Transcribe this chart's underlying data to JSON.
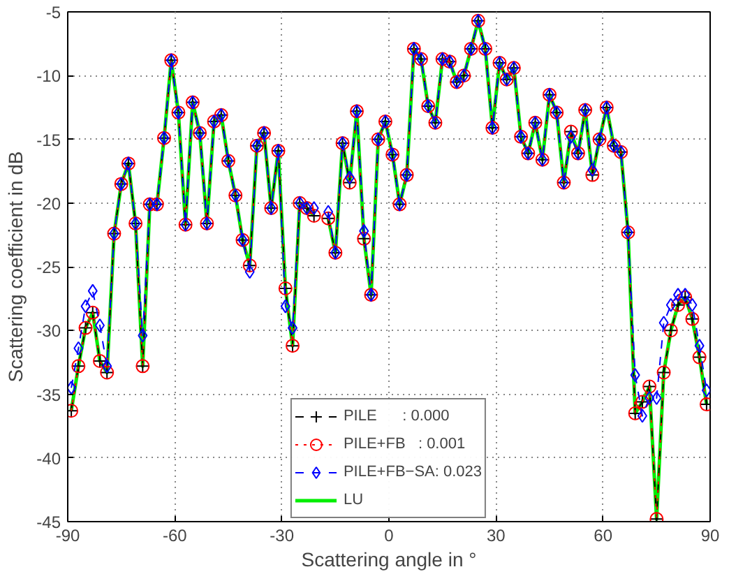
{
  "chart_data": {
    "type": "line",
    "xlabel": "Scattering angle in °",
    "ylabel": "Scattering coefficient in dB",
    "x": [
      -89,
      -87,
      -85,
      -83,
      -81,
      -79,
      -77,
      -75,
      -73,
      -71,
      -69,
      -67,
      -65,
      -63,
      -61,
      -59,
      -57,
      -55,
      -53,
      -51,
      -49,
      -47,
      -45,
      -43,
      -41,
      -39,
      -37,
      -35,
      -33,
      -31,
      -29,
      -27,
      -25,
      -23,
      -21,
      -19,
      -17,
      -15,
      -13,
      -11,
      -9,
      -7,
      -5,
      -3,
      -1,
      1,
      3,
      5,
      7,
      9,
      11,
      13,
      15,
      17,
      19,
      21,
      23,
      25,
      27,
      29,
      31,
      33,
      35,
      37,
      39,
      41,
      43,
      45,
      47,
      49,
      51,
      53,
      55,
      57,
      59,
      61,
      63,
      65,
      67,
      69,
      71,
      73,
      75,
      77,
      79,
      81,
      83,
      85,
      87,
      89
    ],
    "series": [
      {
        "name": "PILE      : 0.000",
        "color": "#000000",
        "marker": "cross",
        "line_style": "dashed",
        "values": [
          -36.3,
          -32.8,
          -29.8,
          -28.6,
          -32.4,
          -33.3,
          -22.4,
          -18.5,
          -16.9,
          -21.6,
          -32.8,
          -20.1,
          -20.1,
          -14.9,
          -8.8,
          -12.9,
          -21.7,
          -12.1,
          -14.5,
          -21.6,
          -13.6,
          -13.1,
          -16.7,
          -19.4,
          -22.9,
          -24.9,
          -15.5,
          -14.5,
          -20.4,
          -15.9,
          -26.7,
          -31.2,
          -20.0,
          -20.4,
          -21.0,
          null,
          -21.2,
          -23.9,
          -15.3,
          -18.4,
          -12.8,
          -22.8,
          -27.2,
          -15.0,
          -13.6,
          -16.2,
          -20.1,
          -17.8,
          -7.9,
          -8.7,
          -12.4,
          -13.7,
          -8.7,
          -8.9,
          -10.5,
          -10.0,
          -7.9,
          -5.7,
          -7.9,
          -14.1,
          -9.0,
          -10.3,
          -9.4,
          -14.8,
          -16.1,
          -13.7,
          -16.6,
          -11.5,
          -12.9,
          -18.4,
          -14.4,
          -16.1,
          -12.7,
          -17.8,
          -15.0,
          -12.5,
          -15.5,
          -16.0,
          -22.3,
          -36.5,
          -35.6,
          -34.4,
          -44.8,
          -33.3,
          -30.0,
          -28.0,
          -27.4,
          -29.1,
          -32.1,
          -35.8
        ]
      },
      {
        "name": "PILE+FB   : 0.001",
        "color": "#ff0000",
        "marker": "circle",
        "line_style": "dotted",
        "values": [
          -36.3,
          -32.8,
          -29.8,
          -28.6,
          -32.4,
          -33.3,
          -22.4,
          -18.5,
          -16.9,
          -21.6,
          -32.8,
          -20.1,
          -20.1,
          -14.9,
          -8.8,
          -12.9,
          -21.7,
          -12.1,
          -14.5,
          -21.6,
          -13.6,
          -13.1,
          -16.7,
          -19.4,
          -22.9,
          -24.9,
          -15.5,
          -14.5,
          -20.4,
          -15.9,
          -26.7,
          -31.2,
          -20.0,
          -20.4,
          -21.0,
          null,
          -21.2,
          -23.9,
          -15.3,
          -18.4,
          -12.8,
          -22.8,
          -27.2,
          -15.0,
          -13.6,
          -16.2,
          -20.1,
          -17.8,
          -7.9,
          -8.7,
          -12.4,
          -13.7,
          -8.7,
          -8.9,
          -10.5,
          -10.0,
          -7.9,
          -5.7,
          -7.9,
          -14.1,
          -9.0,
          -10.3,
          -9.4,
          -14.8,
          -16.1,
          -13.7,
          -16.6,
          -11.5,
          -12.9,
          -18.4,
          -14.4,
          -16.1,
          -12.7,
          -17.8,
          -15.0,
          -12.5,
          -15.5,
          -16.0,
          -22.3,
          -36.5,
          -35.6,
          -34.4,
          -44.8,
          -33.3,
          -30.0,
          -28.0,
          -27.4,
          -29.1,
          -32.1,
          -35.8
        ]
      },
      {
        "name": "PILE+FB−SA: 0.023",
        "color": "#0000ff",
        "marker": "diamond",
        "line_style": "dashed",
        "values": [
          -34.5,
          -31.4,
          -28.1,
          -26.9,
          -29.6,
          -32.8,
          -22.4,
          -18.5,
          -16.9,
          -21.6,
          -30.4,
          -20.1,
          -20.1,
          -14.9,
          -8.8,
          -12.9,
          -21.7,
          -12.1,
          -14.5,
          -21.6,
          -13.6,
          -13.1,
          -16.7,
          -19.4,
          -22.9,
          -25.4,
          -15.5,
          -14.5,
          -20.4,
          -15.9,
          -28.1,
          -29.8,
          -20.0,
          -20.4,
          -20.4,
          null,
          -20.7,
          -23.9,
          -15.3,
          -18.0,
          -12.8,
          -22.2,
          -27.2,
          -15.0,
          -13.6,
          -16.2,
          -20.1,
          -17.8,
          -7.9,
          -8.7,
          -12.4,
          -13.7,
          -8.7,
          -8.9,
          -10.5,
          -10.0,
          -7.9,
          -5.7,
          -7.9,
          -14.1,
          -9.0,
          -10.3,
          -9.4,
          -14.8,
          -16.1,
          -13.7,
          -16.6,
          -11.5,
          -12.9,
          -18.4,
          -14.8,
          -16.1,
          -12.7,
          -17.4,
          -15.0,
          -12.5,
          -15.5,
          -16.0,
          -22.3,
          -33.5,
          -36.7,
          -35.3,
          -35.3,
          -29.4,
          -28.0,
          -27.2,
          -27.2,
          -28.0,
          -31.2,
          -34.7
        ]
      },
      {
        "name": "LU",
        "color": "#00ee00",
        "line_style": "solid",
        "values": [
          -36.3,
          -32.8,
          -29.8,
          -28.6,
          -32.4,
          -33.3,
          -22.4,
          -18.5,
          -16.9,
          -21.6,
          -32.8,
          -20.1,
          -20.1,
          -14.9,
          -8.8,
          -12.9,
          -21.7,
          -12.1,
          -14.5,
          -21.6,
          -13.6,
          -13.1,
          -16.7,
          -19.4,
          -22.9,
          -24.9,
          -15.5,
          -14.5,
          -20.4,
          -15.9,
          -26.7,
          -31.2,
          -20.0,
          -20.4,
          -21.0,
          null,
          -21.2,
          -23.9,
          -15.3,
          -18.4,
          -12.8,
          -22.8,
          -27.2,
          -15.0,
          -13.6,
          -16.2,
          -20.1,
          -17.8,
          -7.9,
          -8.7,
          -12.4,
          -13.7,
          -8.7,
          -8.9,
          -10.5,
          -10.0,
          -7.9,
          -5.7,
          -7.9,
          -14.1,
          -9.0,
          -10.3,
          -9.4,
          -14.8,
          -16.1,
          -13.7,
          -16.6,
          -11.5,
          -12.9,
          -18.4,
          -14.4,
          -16.1,
          -12.7,
          -17.8,
          -15.0,
          -12.5,
          -15.5,
          -16.0,
          -22.3,
          -36.5,
          -35.6,
          -34.4,
          -44.8,
          -33.3,
          -30.0,
          -28.0,
          -27.4,
          -29.1,
          -32.1,
          -35.8
        ]
      }
    ],
    "xlim": [
      -90,
      90
    ],
    "xticks": [
      -90,
      -60,
      -30,
      0,
      30,
      60,
      90
    ],
    "ylim": [
      -45,
      -5
    ],
    "yticks": [
      -45,
      -40,
      -35,
      -30,
      -25,
      -20,
      -15,
      -10,
      -5
    ],
    "grid": true,
    "legend": "bottom"
  }
}
